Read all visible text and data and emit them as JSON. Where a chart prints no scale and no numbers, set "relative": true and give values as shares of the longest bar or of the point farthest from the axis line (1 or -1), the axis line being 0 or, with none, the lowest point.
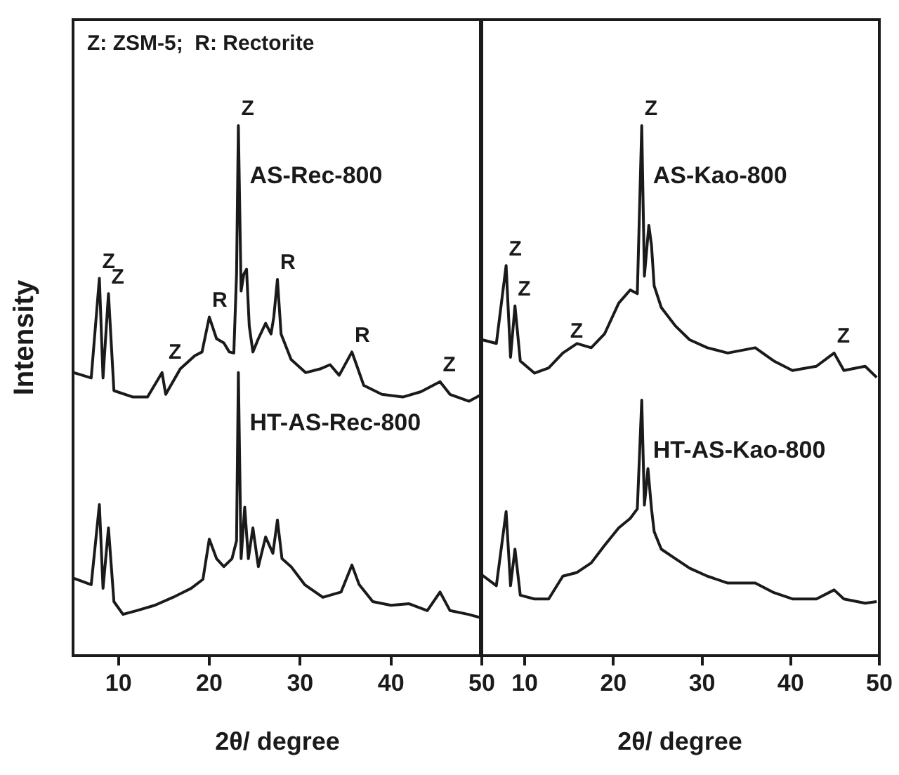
{
  "chart_data": [
    {
      "type": "line",
      "relative": true,
      "ylabel": "Intensity",
      "xlabel": "2θ/ degree",
      "xlim": [
        5,
        50
      ],
      "xticks": [
        10,
        20,
        30,
        40,
        50
      ],
      "grid": false,
      "legend": false,
      "marker": "none",
      "line_style": "solid",
      "annotations": [
        "Z: ZSM-5;  R: Rectorite",
        {
          "text": "Z",
          "x": 7.9,
          "y": 0.712
        },
        {
          "text": "Z",
          "x": 8.9,
          "y": 0.683
        },
        {
          "text": "Z",
          "x": 15.2,
          "y": 0.541
        },
        {
          "text": "R",
          "x": 20.0,
          "y": 0.639
        },
        {
          "text": "Z",
          "x": 23.2,
          "y": 1
        },
        {
          "text": "R",
          "x": 27.5,
          "y": 0.71
        },
        {
          "text": "R",
          "x": 35.7,
          "y": 0.573
        },
        {
          "text": "Z",
          "x": 45.4,
          "y": 0.517
        }
      ],
      "series": [
        {
          "name": "AS-Rec-800",
          "color": "#1a1a1a",
          "x": [
            5.1,
            7.0,
            7.9,
            8.3,
            8.9,
            9.5,
            11.6,
            13.2,
            14.8,
            15.2,
            16.8,
            18.4,
            19.2,
            20.0,
            20.8,
            21.6,
            22.2,
            22.7,
            23.0,
            23.2,
            23.5,
            23.8,
            24.1,
            24.4,
            24.8,
            25.4,
            26.2,
            26.8,
            27.1,
            27.5,
            27.9,
            29.0,
            30.6,
            32.2,
            33.3,
            34.3,
            35.7,
            36.2,
            37.0,
            39.0,
            41.3,
            43.3,
            45.4,
            46.5,
            48.6,
            50.0
          ],
          "values": [
            0.534,
            0.524,
            0.712,
            0.524,
            0.683,
            0.5,
            0.488,
            0.488,
            0.534,
            0.493,
            0.541,
            0.566,
            0.573,
            0.639,
            0.598,
            0.59,
            0.573,
            0.571,
            0.72,
            1,
            0.688,
            0.72,
            0.729,
            0.622,
            0.573,
            0.598,
            0.627,
            0.607,
            0.639,
            0.71,
            0.607,
            0.559,
            0.534,
            0.541,
            0.549,
            0.529,
            0.573,
            0.549,
            0.51,
            0.493,
            0.488,
            0.498,
            0.517,
            0.493,
            0.48,
            0.493
          ]
        },
        {
          "name": "HT-AS-Rec-800",
          "color": "#1a1a1a",
          "x": [
            5.1,
            7.0,
            7.9,
            8.3,
            8.9,
            9.5,
            10.5,
            12.0,
            14.0,
            16.0,
            18.0,
            19.3,
            20.0,
            20.8,
            21.6,
            22.5,
            23.0,
            23.2,
            23.5,
            23.9,
            24.3,
            24.8,
            25.4,
            26.2,
            27.0,
            27.5,
            28.0,
            29.0,
            30.5,
            32.5,
            34.5,
            35.7,
            36.5,
            38.0,
            40.0,
            42.0,
            44.0,
            45.4,
            46.5,
            48.5,
            50.0
          ],
          "values": [
            0.146,
            0.134,
            0.285,
            0.127,
            0.241,
            0.102,
            0.078,
            0.085,
            0.095,
            0.11,
            0.127,
            0.144,
            0.22,
            0.183,
            0.168,
            0.183,
            0.217,
            0.534,
            0.183,
            0.28,
            0.183,
            0.241,
            0.168,
            0.224,
            0.193,
            0.256,
            0.183,
            0.168,
            0.134,
            0.11,
            0.12,
            0.171,
            0.134,
            0.102,
            0.095,
            0.098,
            0.085,
            0.12,
            0.085,
            0.078,
            0.071
          ]
        }
      ]
    },
    {
      "type": "line",
      "relative": true,
      "xlabel": "2θ/ degree",
      "xlim": [
        5,
        50
      ],
      "xticks": [
        10,
        20,
        30,
        40,
        50
      ],
      "grid": false,
      "legend": false,
      "marker": "none",
      "line_style": "solid",
      "annotations": [
        {
          "text": "Z",
          "x": 7.9,
          "y": 0.736
        },
        {
          "text": "Z",
          "x": 8.9,
          "y": 0.66
        },
        {
          "text": "Z",
          "x": 14.8,
          "y": 0.581
        },
        {
          "text": "Z",
          "x": 23.2,
          "y": 1
        },
        {
          "text": "Z",
          "x": 44.9,
          "y": 0.571
        }
      ],
      "series": [
        {
          "name": "AS-Kao-800",
          "color": "#1a1a1a",
          "x": [
            5.2,
            6.8,
            7.9,
            8.4,
            8.9,
            9.5,
            11.1,
            12.7,
            14.3,
            15.9,
            17.5,
            19.0,
            20.6,
            21.9,
            22.7,
            23.2,
            23.5,
            24.0,
            24.3,
            24.6,
            25.4,
            27.0,
            28.6,
            30.6,
            32.9,
            36.0,
            38.1,
            40.2,
            42.9,
            44.9,
            46.0,
            48.4,
            49.7
          ],
          "values": [
            0.596,
            0.589,
            0.736,
            0.563,
            0.66,
            0.556,
            0.533,
            0.543,
            0.571,
            0.589,
            0.581,
            0.607,
            0.665,
            0.69,
            0.683,
            1,
            0.716,
            0.812,
            0.774,
            0.698,
            0.657,
            0.622,
            0.596,
            0.581,
            0.571,
            0.581,
            0.556,
            0.538,
            0.546,
            0.571,
            0.538,
            0.546,
            0.525
          ]
        },
        {
          "name": "HT-AS-Kao-800",
          "color": "#1a1a1a",
          "x": [
            5.2,
            6.8,
            7.9,
            8.4,
            8.9,
            9.5,
            11.1,
            12.7,
            14.3,
            15.9,
            17.5,
            19.0,
            20.6,
            21.9,
            22.7,
            23.2,
            23.5,
            23.9,
            24.3,
            24.6,
            25.4,
            27.0,
            28.6,
            30.6,
            32.9,
            36.0,
            38.1,
            40.2,
            42.9,
            44.9,
            46.0,
            48.4,
            49.7
          ],
          "values": [
            0.152,
            0.132,
            0.272,
            0.132,
            0.201,
            0.114,
            0.107,
            0.107,
            0.15,
            0.157,
            0.175,
            0.208,
            0.241,
            0.259,
            0.277,
            0.482,
            0.284,
            0.353,
            0.277,
            0.234,
            0.201,
            0.183,
            0.165,
            0.15,
            0.137,
            0.137,
            0.119,
            0.107,
            0.107,
            0.124,
            0.107,
            0.099,
            0.102
          ]
        }
      ]
    }
  ]
}
